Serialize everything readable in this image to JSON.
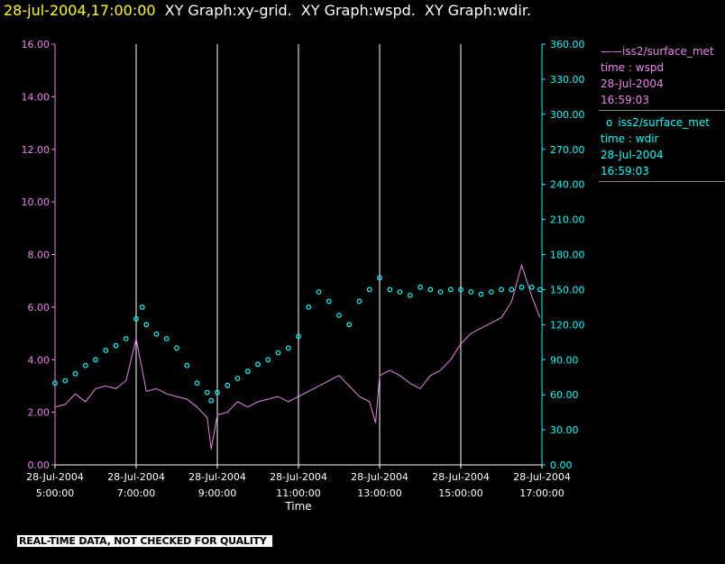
{
  "header": {
    "timestamp": "28-jul-2004,17:00:00",
    "graphs": [
      "XY Graph:xy-grid.",
      "XY Graph:wspd.",
      "XY Graph:wdir."
    ]
  },
  "legend": {
    "wspd": {
      "marker": "——",
      "source": "iss2/surface_met",
      "var": "time : wspd",
      "date": "28-Jul-2004",
      "time": "16:59:03",
      "color": "#ee82ee"
    },
    "wdir": {
      "marker": "o",
      "source": "iss2/surface_met",
      "var": "time : wdir",
      "date": "28-Jul-2004",
      "time": "16:59:03",
      "color": "#00ffff"
    }
  },
  "notice": "REAL-TIME DATA, NOT CHECKED FOR QUALITY",
  "chart_data": {
    "type": "line",
    "xlabel": "Time",
    "x_ticks": [
      {
        "date": "28-Jul-2004",
        "time": "5:00:00",
        "h": 5
      },
      {
        "date": "28-Jul-2004",
        "time": "7:00:00",
        "h": 7
      },
      {
        "date": "28-Jul-2004",
        "time": "9:00:00",
        "h": 9
      },
      {
        "date": "28-Jul-2004",
        "time": "11:00:00",
        "h": 11
      },
      {
        "date": "28-Jul-2004",
        "time": "13:00:00",
        "h": 13
      },
      {
        "date": "28-Jul-2004",
        "time": "15:00:00",
        "h": 15
      },
      {
        "date": "28-Jul-2004",
        "time": "17:00:00",
        "h": 17
      }
    ],
    "xlim_hours": [
      5,
      17
    ],
    "y_left": {
      "ticks": [
        "0.00",
        "2.00",
        "4.00",
        "6.00",
        "8.00",
        "10.00",
        "12.00",
        "14.00",
        "16.00"
      ],
      "ylim": [
        0,
        16
      ],
      "color": "#ee82ee"
    },
    "y_right": {
      "ticks": [
        "0.00",
        "30.00",
        "60.00",
        "90.00",
        "120.00",
        "150.00",
        "180.00",
        "210.00",
        "240.00",
        "270.00",
        "300.00",
        "330.00",
        "360.00"
      ],
      "ylim": [
        0,
        360
      ],
      "color": "#00ffff"
    },
    "grid": "vertical lines at x ticks",
    "series": [
      {
        "name": "iss2/surface_met time : wspd",
        "axis": "left",
        "style": "line",
        "x": [
          5.0,
          5.25,
          5.5,
          5.75,
          6.0,
          6.25,
          6.5,
          6.75,
          7.0,
          7.25,
          7.5,
          7.75,
          8.0,
          8.25,
          8.5,
          8.75,
          8.85,
          9.0,
          9.25,
          9.5,
          9.75,
          10.0,
          10.25,
          10.5,
          10.75,
          11.0,
          11.25,
          11.5,
          11.75,
          12.0,
          12.25,
          12.5,
          12.75,
          12.9,
          13.0,
          13.25,
          13.5,
          13.75,
          14.0,
          14.25,
          14.5,
          14.75,
          15.0,
          15.25,
          15.5,
          15.75,
          16.0,
          16.25,
          16.5,
          16.75,
          16.95
        ],
        "y": [
          2.2,
          2.3,
          2.7,
          2.4,
          2.9,
          3.0,
          2.9,
          3.2,
          4.8,
          2.8,
          2.9,
          2.7,
          2.6,
          2.5,
          2.2,
          1.8,
          0.6,
          1.9,
          2.0,
          2.4,
          2.2,
          2.4,
          2.5,
          2.6,
          2.4,
          2.6,
          2.8,
          3.0,
          3.2,
          3.4,
          3.0,
          2.6,
          2.4,
          1.6,
          3.4,
          3.6,
          3.4,
          3.1,
          2.9,
          3.4,
          3.6,
          4.0,
          4.6,
          5.0,
          5.2,
          5.4,
          5.6,
          6.2,
          7.6,
          6.4,
          5.6
        ]
      },
      {
        "name": "iss2/surface_met time : wdir",
        "axis": "right",
        "style": "markers",
        "x": [
          5.0,
          5.25,
          5.5,
          5.75,
          6.0,
          6.25,
          6.5,
          6.75,
          7.0,
          7.15,
          7.25,
          7.5,
          7.75,
          8.0,
          8.25,
          8.5,
          8.75,
          8.85,
          9.0,
          9.25,
          9.5,
          9.75,
          10.0,
          10.25,
          10.5,
          10.75,
          11.0,
          11.25,
          11.5,
          11.75,
          12.0,
          12.25,
          12.5,
          12.75,
          13.0,
          13.25,
          13.5,
          13.75,
          14.0,
          14.25,
          14.5,
          14.75,
          15.0,
          15.25,
          15.5,
          15.75,
          16.0,
          16.25,
          16.5,
          16.75,
          16.95
        ],
        "y": [
          70,
          72,
          78,
          85,
          90,
          98,
          102,
          108,
          125,
          135,
          120,
          112,
          108,
          100,
          85,
          70,
          62,
          55,
          62,
          68,
          74,
          80,
          86,
          90,
          96,
          100,
          110,
          135,
          148,
          140,
          128,
          120,
          140,
          150,
          160,
          150,
          148,
          145,
          152,
          150,
          148,
          150,
          150,
          148,
          146,
          148,
          150,
          150,
          152,
          152,
          150
        ]
      }
    ]
  }
}
